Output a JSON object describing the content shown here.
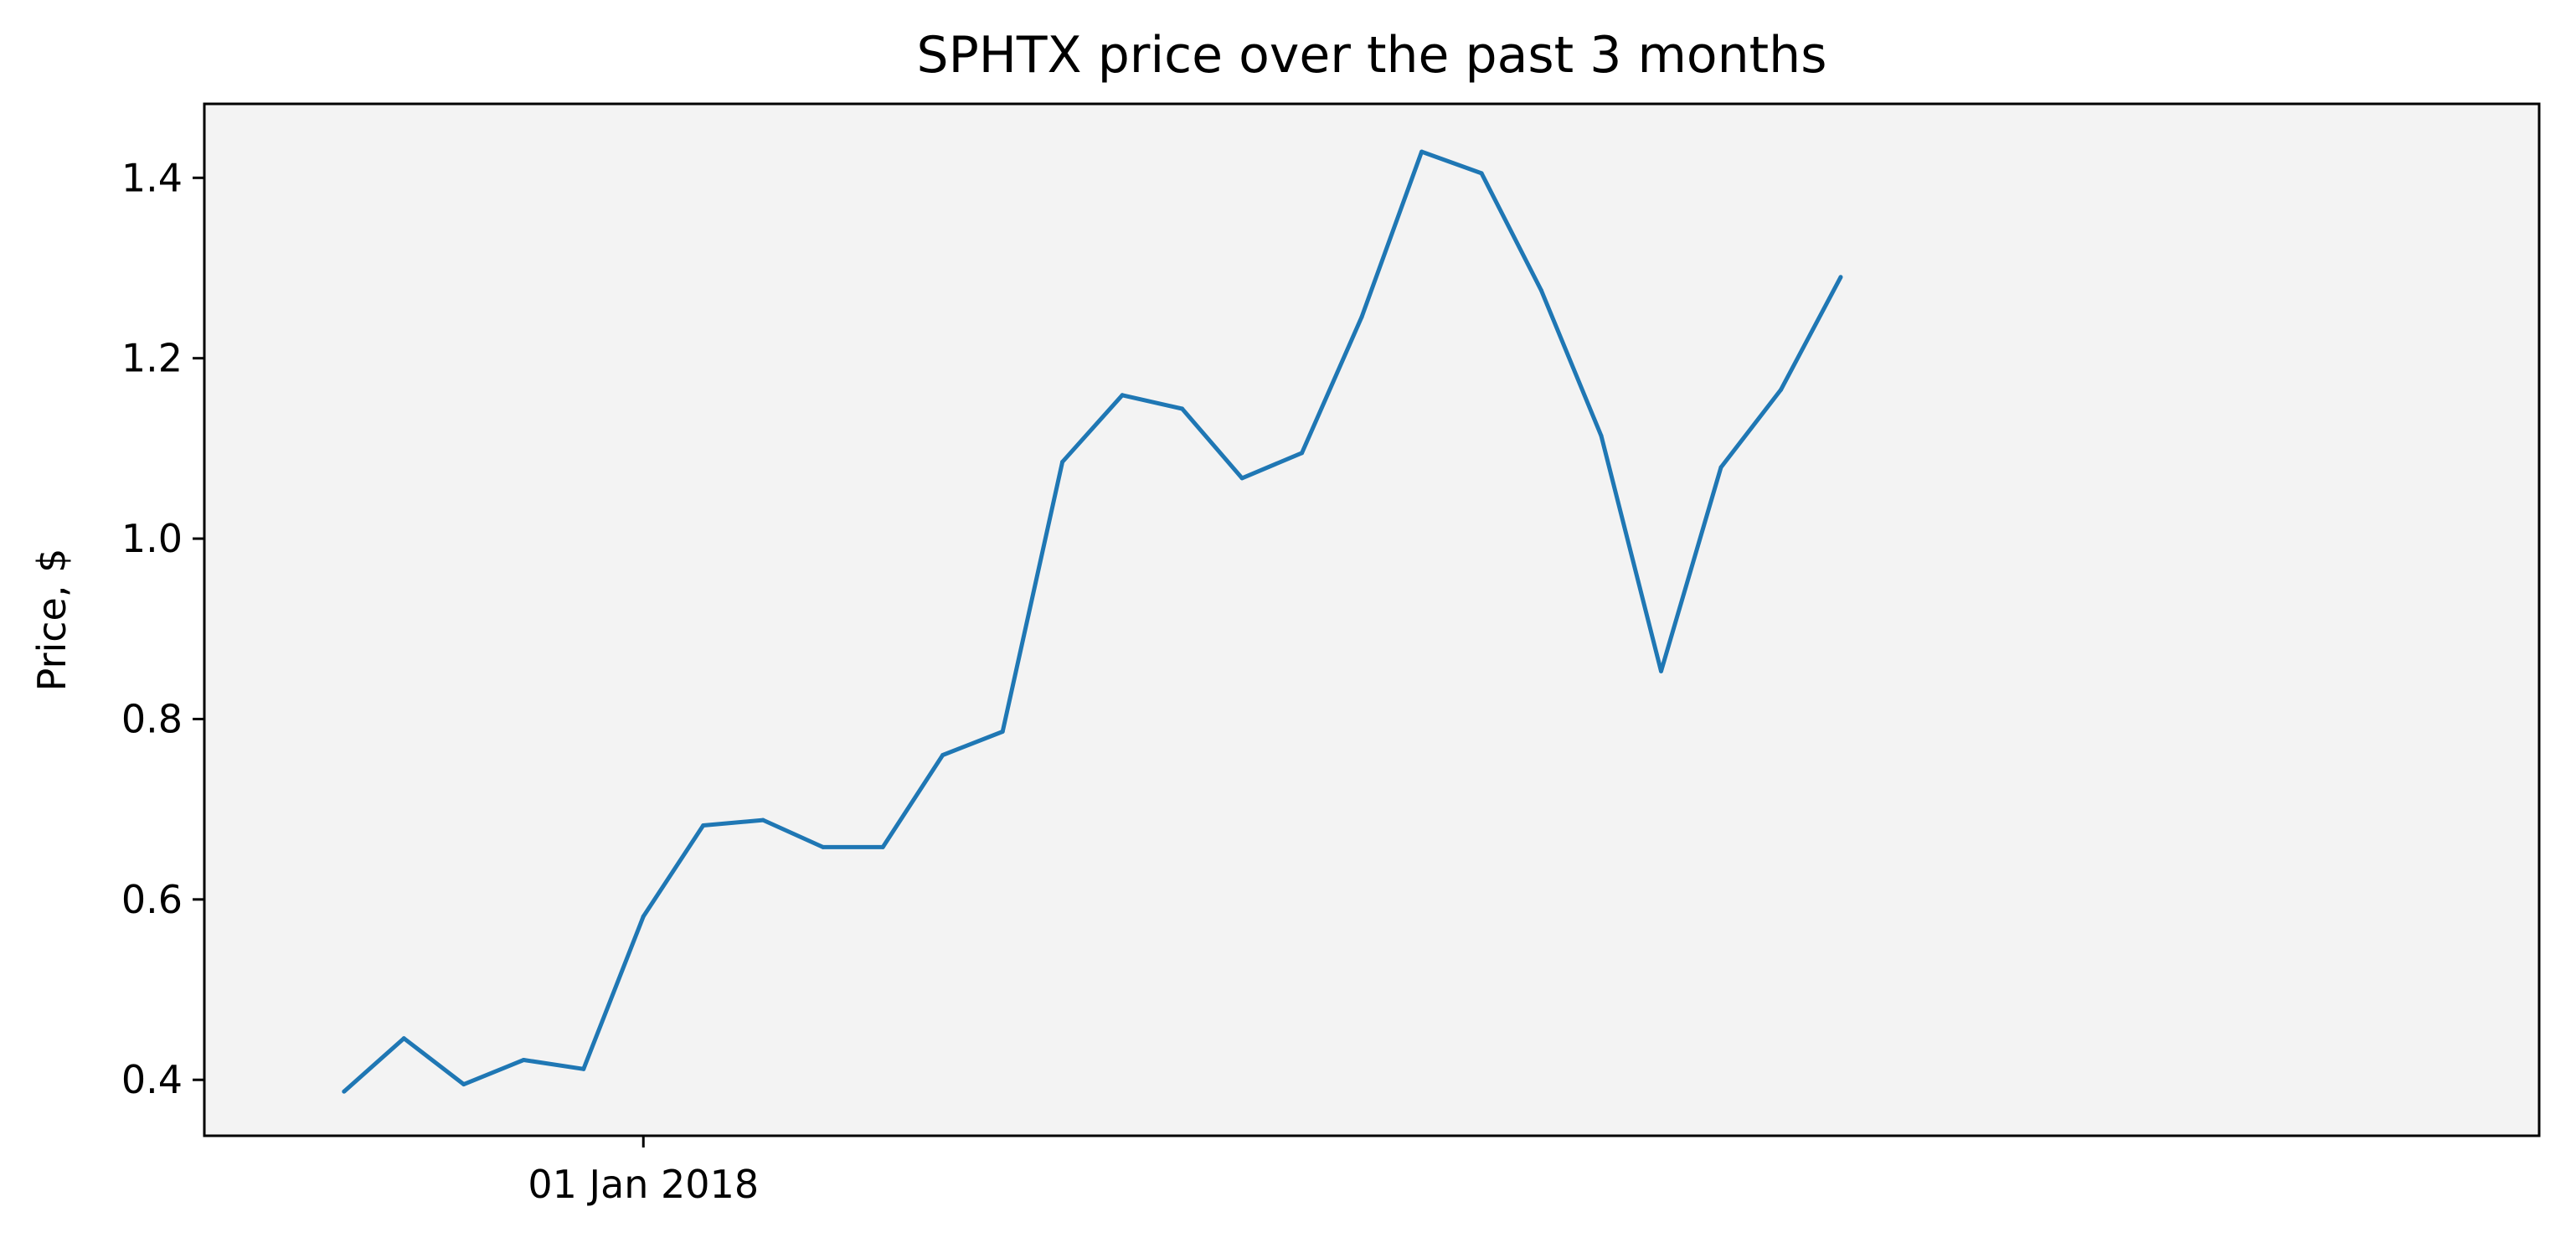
{
  "chart_data": {
    "type": "line",
    "title": "SPHTX price over the past 3 months",
    "xlabel": "",
    "ylabel": "Price, $",
    "x_tick_labels": [
      {
        "x": "2018-01-01",
        "label": "01 Jan 2018"
      }
    ],
    "y_ticks": [
      0.4,
      0.6,
      0.8,
      1.0,
      1.2,
      1.4
    ],
    "y_tick_labels": [
      "0.4",
      "0.6",
      "0.8",
      "1.0",
      "1.2",
      "1.4"
    ],
    "ylim": [
      0.338,
      1.482
    ],
    "xlim": [
      "2017-12-10",
      "2018-04-06"
    ],
    "grid": false,
    "background_color": "#f3f3f3",
    "series": [
      {
        "color": "#1f77b4",
        "x": [
          "2017-12-17",
          "2017-12-20",
          "2017-12-23",
          "2017-12-26",
          "2017-12-29",
          "2018-01-01",
          "2018-01-04",
          "2018-01-07",
          "2018-01-10",
          "2018-01-13",
          "2018-01-16",
          "2018-01-19",
          "2018-01-22",
          "2018-01-25",
          "2018-01-28",
          "2018-01-31",
          "2018-02-03",
          "2018-02-06",
          "2018-02-09",
          "2018-02-12",
          "2018-02-15",
          "2018-02-18",
          "2018-02-21",
          "2018-02-24",
          "2018-02-27",
          "2018-03-02"
        ],
        "values": [
          0.387,
          0.446,
          0.395,
          0.422,
          0.412,
          0.581,
          0.682,
          0.688,
          0.658,
          0.658,
          0.76,
          0.786,
          1.085,
          1.159,
          1.144,
          1.067,
          1.095,
          1.246,
          1.429,
          1.405,
          1.275,
          1.114,
          0.853,
          1.079,
          1.165,
          1.29
        ]
      }
    ]
  }
}
